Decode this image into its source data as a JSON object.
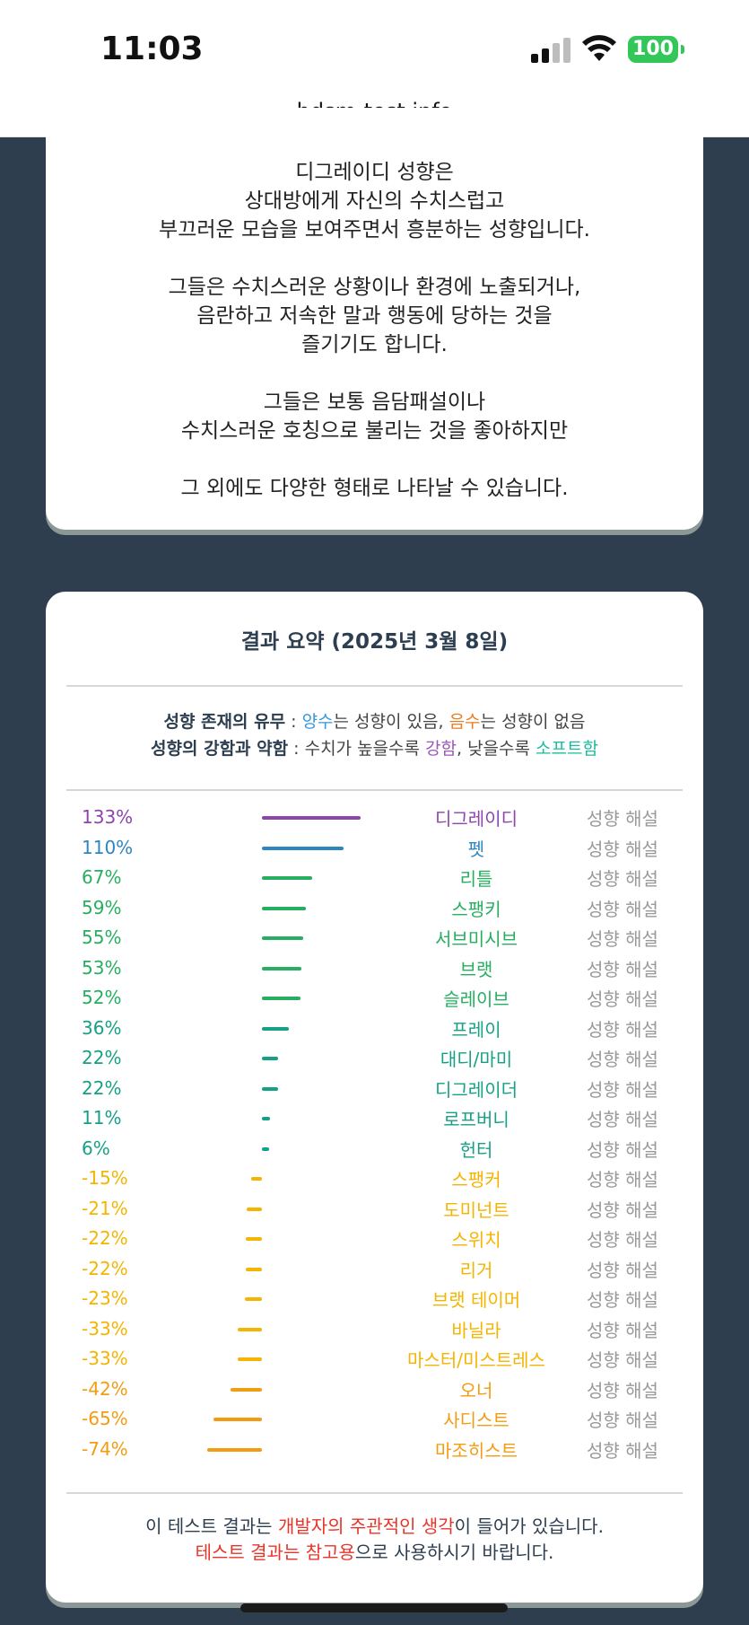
{
  "status_bar": {
    "time": "11:03",
    "battery": "100"
  },
  "browser": {
    "url": "bdsm-test.info"
  },
  "description": {
    "paragraphs": [
      [
        "디그레이디 성향은",
        "상대방에게 자신의 수치스럽고",
        "부끄러운 모습을 보여주면서 흥분하는 성향입니다."
      ],
      [
        "그들은 수치스러운 상황이나 환경에 노출되거나,",
        "음란하고 저속한 말과 행동에 당하는 것을",
        "즐기기도 합니다."
      ],
      [
        "그들은 보통 음담패설이나",
        "수치스러운 호칭으로 불리는 것을 좋아하지만"
      ],
      [
        "그 외에도 다양한 형태로 나타날 수 있습니다."
      ]
    ]
  },
  "summary": {
    "title": "결과 요약 (2025년 3월 8일)",
    "legend": {
      "line1_bold": "성향 존재의 유무",
      "line1_sep": " : ",
      "positive": "양수",
      "positive_suffix": "는 성향이 있음, ",
      "negative": "음수",
      "negative_suffix": "는 성향이 없음",
      "line2_bold": "성향의 강함과 약함",
      "line2_sep": " : 수치가 높을수록 ",
      "strong": "강함",
      "strong_suffix": ", 낮을수록 ",
      "soft": "소프트함"
    },
    "explain_label": "성향 해설",
    "colors": {
      "purple": "#8e44ad",
      "blue": "#2e86c1",
      "green": "#27ae60",
      "teal": "#16a085",
      "yellow": "#f4b400",
      "orange": "#f39c12"
    }
  },
  "chart_data": {
    "type": "bar",
    "categories": [
      "디그레이디",
      "펫",
      "리틀",
      "스팽키",
      "서브미시브",
      "브랫",
      "슬레이브",
      "프레이",
      "대디/마미",
      "디그레이더",
      "로프버니",
      "헌터",
      "스팽커",
      "도미넌트",
      "스위치",
      "리거",
      "브랫 테이머",
      "바닐라",
      "마스터/미스트레스",
      "오너",
      "사디스트",
      "마조히스트"
    ],
    "values": [
      133,
      110,
      67,
      59,
      55,
      53,
      52,
      36,
      22,
      22,
      11,
      6,
      -15,
      -21,
      -22,
      -22,
      -23,
      -33,
      -33,
      -42,
      -65,
      -74
    ],
    "labels": [
      "133%",
      "110%",
      "67%",
      "59%",
      "55%",
      "53%",
      "52%",
      "36%",
      "22%",
      "22%",
      "11%",
      "6%",
      "-15%",
      "-21%",
      "-22%",
      "-22%",
      "-23%",
      "-33%",
      "-33%",
      "-42%",
      "-65%",
      "-74%"
    ],
    "colors": [
      "purple",
      "blue",
      "green",
      "green",
      "green",
      "green",
      "green",
      "teal",
      "teal",
      "teal",
      "teal",
      "teal",
      "yellow",
      "yellow",
      "yellow",
      "yellow",
      "yellow",
      "yellow",
      "yellow",
      "orange",
      "orange",
      "orange"
    ]
  },
  "footer": {
    "line1_prefix": "이 테스트 결과는 ",
    "line1_red": "개발자의 주관적인 생각",
    "line1_suffix": "이 들어가 있습니다.",
    "line2_red": "테스트 결과는 참고용",
    "line2_suffix": "으로 사용하시기 바랍니다."
  }
}
